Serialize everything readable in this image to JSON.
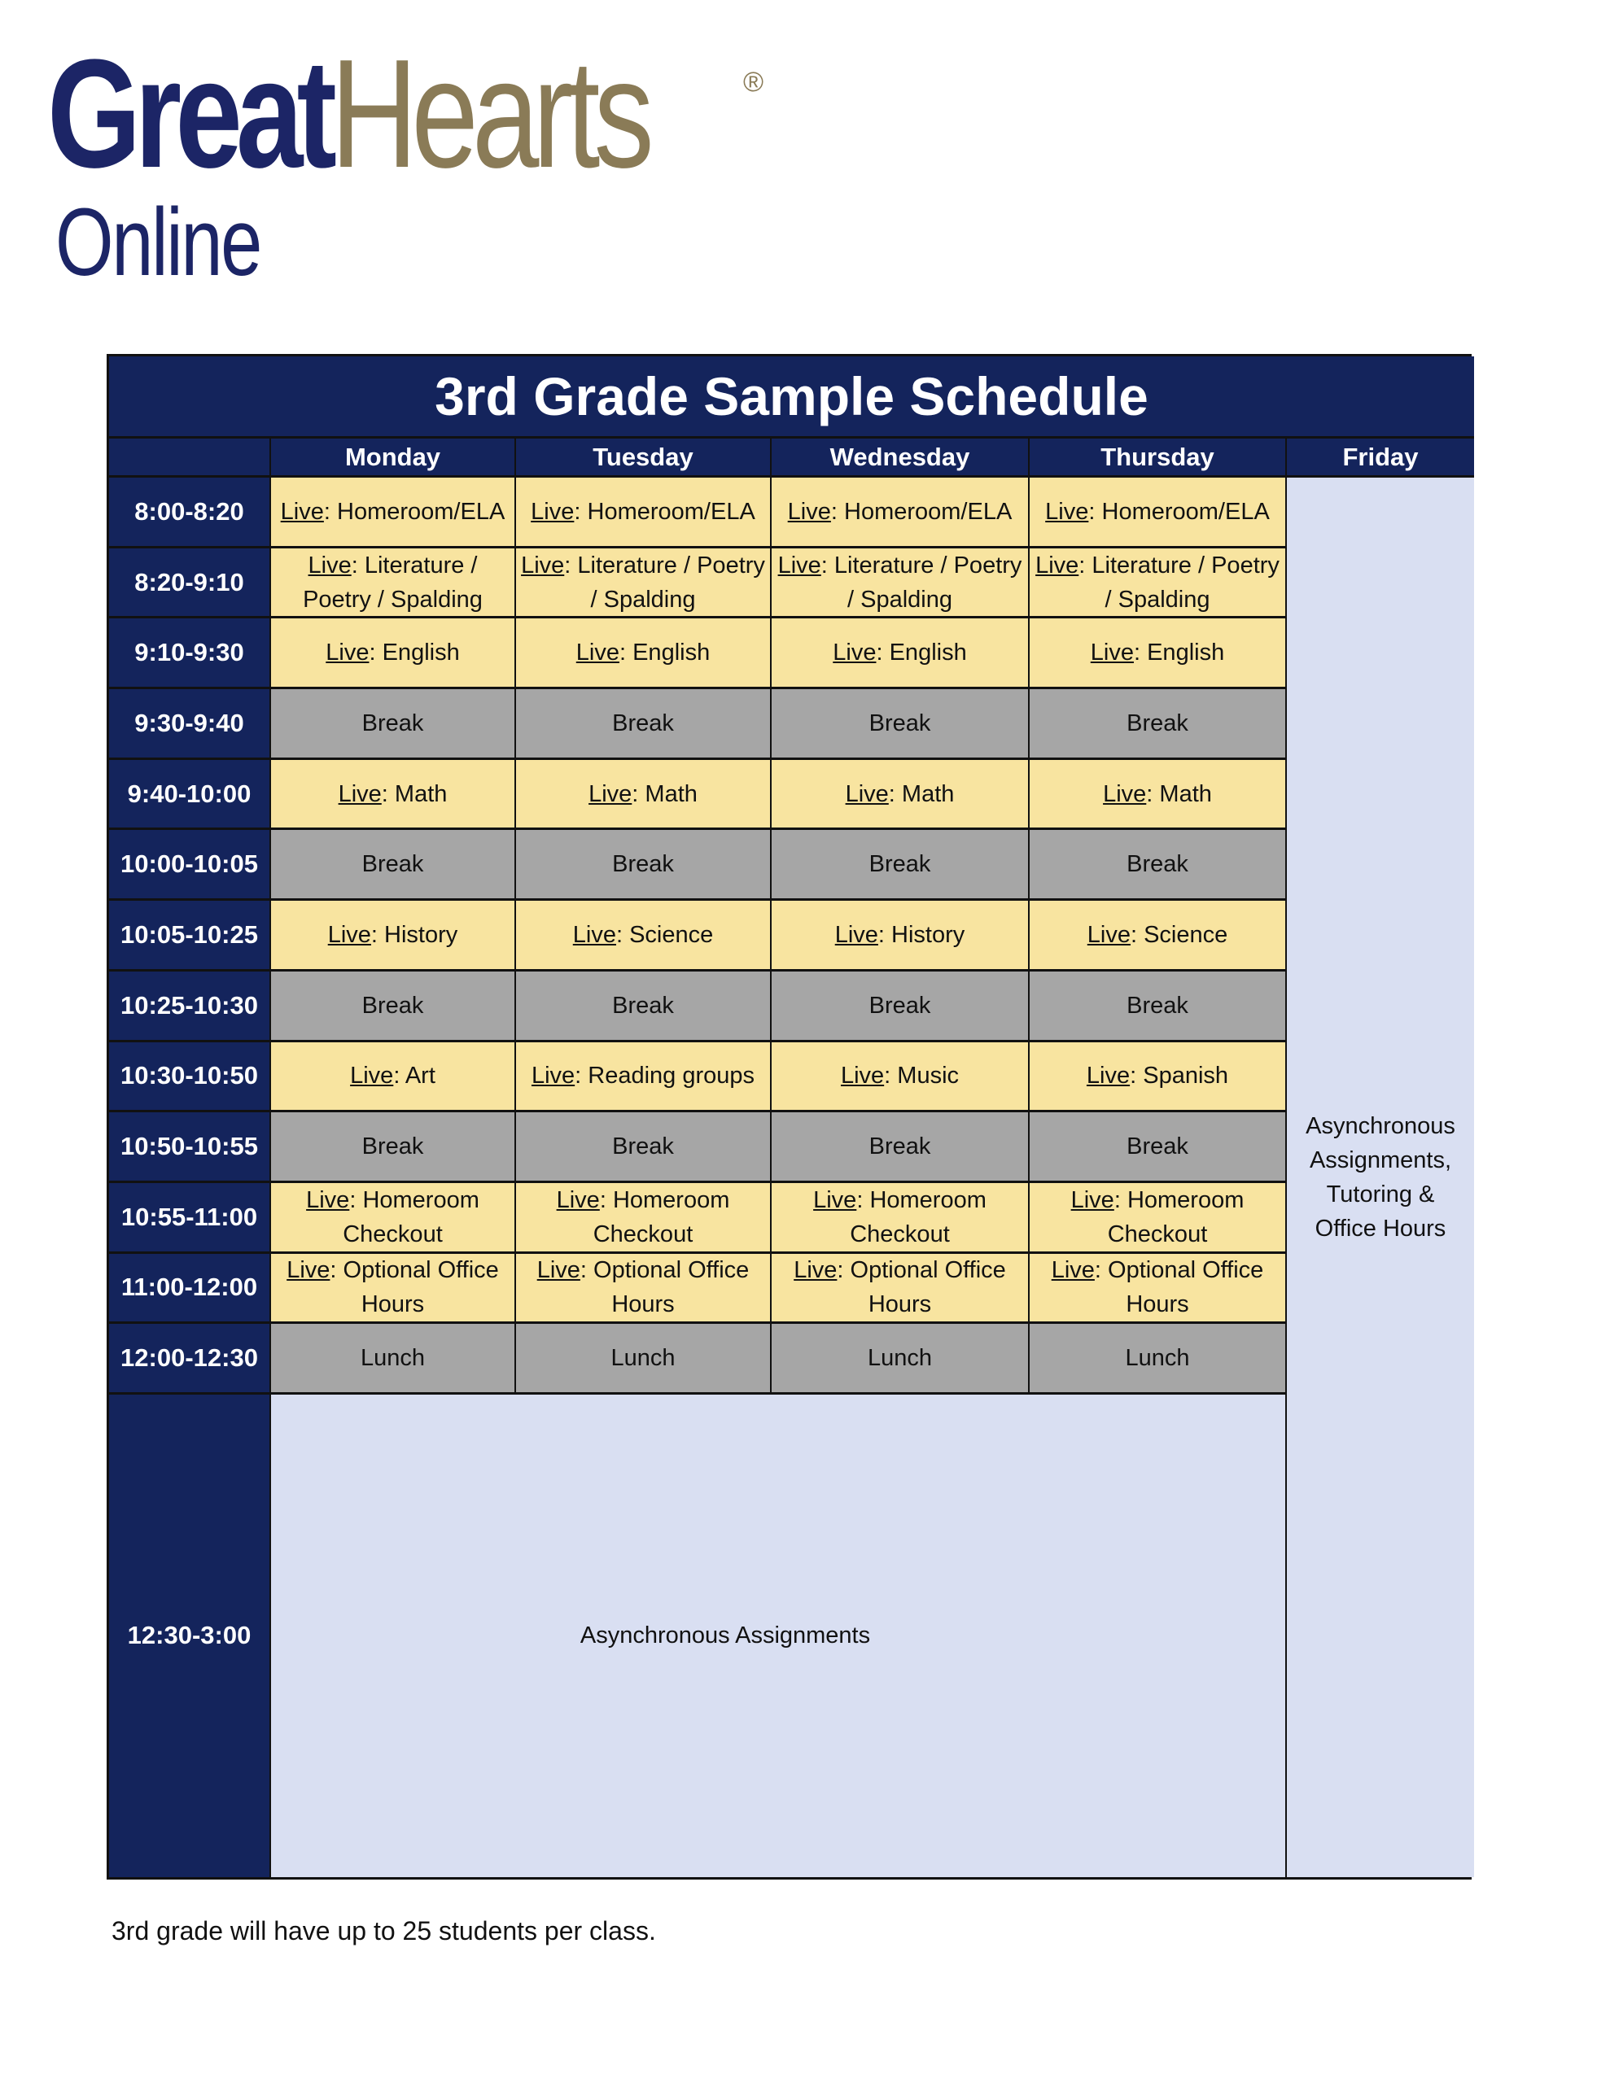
{
  "logo": {
    "great": "Great",
    "hearts": "Hearts",
    "reg": "®",
    "online": "Online",
    "colors": {
      "navy": "#1c2566",
      "gold": "#8a7b57"
    }
  },
  "schedule": {
    "title": "3rd Grade Sample Schedule",
    "days": [
      "Monday",
      "Tuesday",
      "Wednesday",
      "Thursday",
      "Friday"
    ],
    "live_prefix": "Live",
    "rows": [
      {
        "time": "8:00-8:20",
        "type": "live",
        "cells": [
          "Homeroom/ELA",
          "Homeroom/ELA",
          "Homeroom/ELA",
          "Homeroom/ELA"
        ]
      },
      {
        "time": "8:20-9:10",
        "type": "live",
        "cells": [
          "Literature / Poetry / Spalding",
          "Literature / Poetry / Spalding",
          "Literature / Poetry / Spalding",
          "Literature / Poetry / Spalding"
        ]
      },
      {
        "time": "9:10-9:30",
        "type": "live",
        "cells": [
          "English",
          "English",
          "English",
          "English"
        ]
      },
      {
        "time": "9:30-9:40",
        "type": "break",
        "cells": [
          "Break",
          "Break",
          "Break",
          "Break"
        ]
      },
      {
        "time": "9:40-10:00",
        "type": "live",
        "cells": [
          "Math",
          "Math",
          "Math",
          "Math"
        ]
      },
      {
        "time": "10:00-10:05",
        "type": "break",
        "cells": [
          "Break",
          "Break",
          "Break",
          "Break"
        ]
      },
      {
        "time": "10:05-10:25",
        "type": "live",
        "cells": [
          "History",
          "Science",
          "History",
          "Science"
        ]
      },
      {
        "time": "10:25-10:30",
        "type": "break",
        "cells": [
          "Break",
          "Break",
          "Break",
          "Break"
        ]
      },
      {
        "time": "10:30-10:50",
        "type": "live",
        "cells": [
          "Art",
          "Reading groups",
          "Music",
          "Spanish"
        ]
      },
      {
        "time": "10:50-10:55",
        "type": "break",
        "cells": [
          "Break",
          "Break",
          "Break",
          "Break"
        ]
      },
      {
        "time": "10:55-11:00",
        "type": "live",
        "cells": [
          "Homeroom Checkout",
          "Homeroom Checkout",
          "Homeroom Checkout",
          "Homeroom Checkout"
        ]
      },
      {
        "time": "11:00-12:00",
        "type": "live",
        "cells": [
          "Optional Office Hours",
          "Optional Office Hours",
          "Optional Office Hours",
          "Optional Office Hours"
        ]
      },
      {
        "time": "12:00-12:30",
        "type": "break",
        "cells": [
          "Lunch",
          "Lunch",
          "Lunch",
          "Lunch"
        ]
      }
    ],
    "afternoon": {
      "time": "12:30-3:00",
      "text": "Asynchronous Assignments"
    },
    "friday_text": "Asynchronous Assignments, Tutoring & Office Hours",
    "colors": {
      "header": "#14245c",
      "live": "#f8e4a0",
      "break": "#a6a6a6",
      "async": "#d9dff2"
    }
  },
  "footnote": "3rd grade will have up to 25 students per class."
}
